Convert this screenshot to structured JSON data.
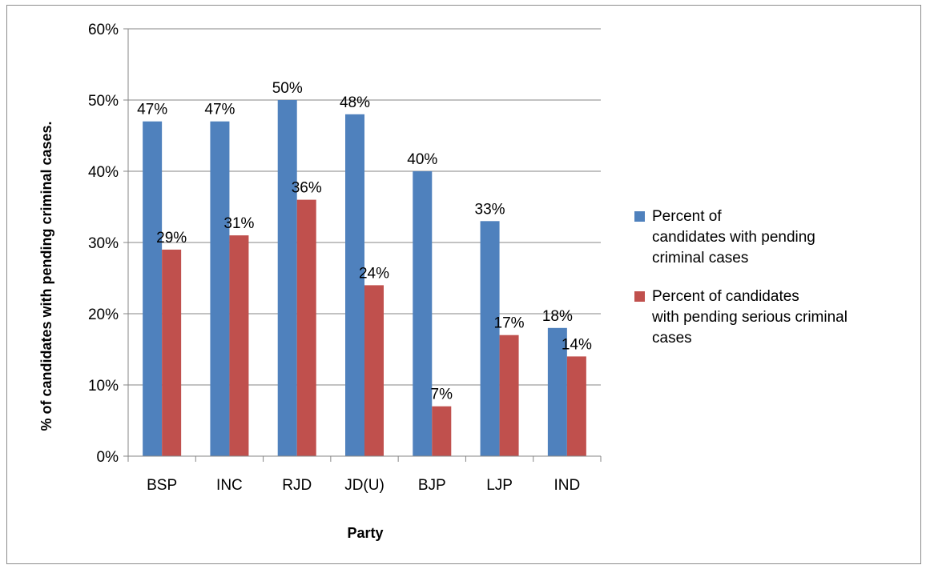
{
  "chart_data": {
    "type": "bar",
    "categories": [
      "BSP",
      "INC",
      "RJD",
      "JD(U)",
      "BJP",
      "LJP",
      "IND"
    ],
    "series": [
      {
        "name": "Percent of\n candidates with pending\n criminal cases",
        "values": [
          47,
          47,
          50,
          48,
          40,
          33,
          18
        ],
        "labels": [
          "47%",
          "47%",
          "50%",
          "48%",
          "40%",
          "33%",
          "18%"
        ],
        "color": "#4f81bd"
      },
      {
        "name": "Percent of candidates\n with pending serious criminal\n cases",
        "values": [
          29,
          31,
          36,
          24,
          7,
          17,
          14
        ],
        "labels": [
          "29%",
          "31%",
          "36%",
          "24%",
          "7%",
          "17%",
          "14%"
        ],
        "color": "#c0504d"
      }
    ],
    "title": "",
    "xlabel": "Party",
    "ylabel": "% of candidates with pending criminal cases.",
    "ylim": [
      0,
      60
    ],
    "yticks": [
      0,
      10,
      20,
      30,
      40,
      50,
      60
    ],
    "ytick_labels": [
      "0%",
      "10%",
      "20%",
      "30%",
      "40%",
      "50%",
      "60%"
    ],
    "grid": true,
    "legend_position": "right",
    "gridline_color": "#868686"
  }
}
